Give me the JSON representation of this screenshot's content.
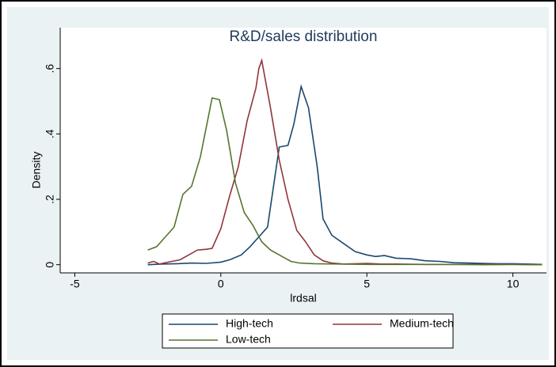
{
  "chart_data": {
    "type": "line",
    "title": "R&D/sales distribution",
    "x_label": "lrdsal",
    "y_label": "Density",
    "xlim": [
      -5.5,
      11.15
    ],
    "ylim": [
      -0.025,
      0.725
    ],
    "xticks": [
      -5,
      0,
      5,
      10
    ],
    "yticks": [
      0,
      {
        "value": 0.2,
        "label": ".2"
      },
      {
        "value": 0.4,
        "label": ".4"
      },
      {
        "value": 0.6,
        "label": ".6"
      }
    ],
    "legend": "bottom",
    "series": [
      {
        "name": "High-tech",
        "color": "#1a476f",
        "x": [
          -2.5,
          -2,
          -1.5,
          -1,
          -0.5,
          0,
          0.3,
          0.7,
          1,
          1.3,
          1.6,
          2.0,
          2.3,
          2.5,
          2.75,
          3.0,
          3.3,
          3.5,
          3.8,
          4.2,
          4.6,
          5,
          5.3,
          5.6,
          6,
          6.5,
          7,
          7.5,
          8,
          8.5,
          9,
          9.5,
          10,
          10.5,
          11
        ],
        "values": [
          0.0,
          0.002,
          0.003,
          0.005,
          0.004,
          0.008,
          0.015,
          0.03,
          0.055,
          0.085,
          0.115,
          0.36,
          0.365,
          0.43,
          0.545,
          0.48,
          0.3,
          0.14,
          0.09,
          0.065,
          0.04,
          0.03,
          0.025,
          0.028,
          0.02,
          0.018,
          0.012,
          0.01,
          0.006,
          0.005,
          0.004,
          0.003,
          0.003,
          0.002,
          0.001
        ]
      },
      {
        "name": "Medium-tech",
        "color": "#90353b",
        "x": [
          -2.5,
          -2.3,
          -2.1,
          -1.8,
          -1.4,
          -1.1,
          -0.8,
          -0.5,
          -0.3,
          0,
          0.3,
          0.6,
          0.9,
          1.2,
          1.3,
          1.4,
          1.7,
          2.0,
          2.3,
          2.6,
          2.9,
          3.2,
          3.5,
          3.8,
          4.2,
          5,
          5.5,
          6,
          7,
          8,
          9,
          10,
          11
        ],
        "values": [
          0.005,
          0.01,
          0.002,
          0.008,
          0.015,
          0.03,
          0.045,
          0.047,
          0.05,
          0.11,
          0.21,
          0.3,
          0.44,
          0.54,
          0.6,
          0.625,
          0.48,
          0.32,
          0.2,
          0.105,
          0.07,
          0.03,
          0.012,
          0.005,
          0.002,
          0.004,
          0.002,
          0.002,
          0.001,
          0.001,
          0.001,
          0.001,
          0.0
        ]
      },
      {
        "name": "Low-tech",
        "color": "#55752f",
        "x": [
          -2.5,
          -2.2,
          -1.9,
          -1.6,
          -1.3,
          -1.0,
          -0.7,
          -0.3,
          -0.05,
          0.2,
          0.5,
          0.8,
          1.1,
          1.4,
          1.7,
          2,
          2.4,
          2.7,
          3.2,
          4,
          5,
          6,
          7,
          8,
          9,
          10,
          11
        ],
        "values": [
          0.045,
          0.055,
          0.085,
          0.115,
          0.215,
          0.24,
          0.33,
          0.51,
          0.505,
          0.41,
          0.25,
          0.16,
          0.12,
          0.07,
          0.045,
          0.03,
          0.01,
          0.005,
          0.003,
          0.002,
          0.001,
          0.001,
          0.001,
          0.001,
          0.0,
          0.001,
          0.0
        ]
      }
    ]
  }
}
